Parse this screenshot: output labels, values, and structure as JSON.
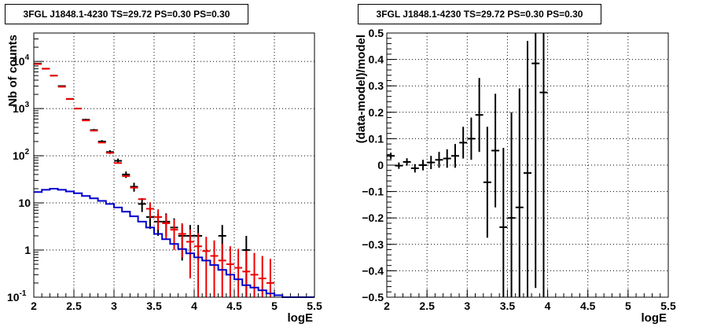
{
  "panels": [
    {
      "title": "3FGL J1848.1-4230 TS=29.72 PS=0.30 PS=0.30"
    },
    {
      "title": "3FGL J1848.1-4230 TS=29.72 PS=0.30 PS=0.30"
    }
  ],
  "colors": {
    "data": "#000000",
    "model": "#ee0000",
    "background": "#0000cc"
  },
  "chart_data": [
    {
      "type": "line",
      "title": "3FGL J1848.1-4230 TS=29.72 PS=0.30 PS=0.30",
      "xlabel": "logE",
      "ylabel": "Nb of counts",
      "xlim": [
        2,
        5.5
      ],
      "ylim": [
        0.1,
        40000
      ],
      "yscale": "log",
      "grid": true,
      "x_ticks": [
        "2",
        "2.5",
        "3",
        "3.5",
        "4",
        "4.5",
        "5",
        "5.5"
      ],
      "y_ticks": [
        "10^-1",
        "1",
        "10",
        "10^2",
        "10^3",
        "10^4"
      ],
      "series": [
        {
          "type": "errorbar",
          "color": "#000000",
          "x": [
            2.05,
            2.15,
            2.25,
            2.35,
            2.45,
            2.55,
            2.65,
            2.75,
            2.85,
            2.95,
            3.05,
            3.15,
            3.25,
            3.35,
            3.45,
            3.55,
            3.65,
            3.75,
            3.85,
            3.95,
            4.05,
            4.35,
            4.65
          ],
          "y": [
            9000,
            7000,
            5000,
            3000,
            1600,
            1000,
            580,
            350,
            200,
            120,
            78,
            40,
            22,
            9.5,
            5,
            4,
            4,
            3,
            2,
            2,
            2,
            2,
            1
          ],
          "yerr_lo": [
            95,
            84,
            71,
            55,
            40,
            32,
            24,
            19,
            14,
            11,
            9,
            6.3,
            4.7,
            3.1,
            2.2,
            2,
            2,
            1.7,
            1.4,
            1.4,
            1.4,
            1.4,
            1
          ],
          "yerr_hi": [
            95,
            84,
            71,
            55,
            40,
            32,
            24,
            19,
            14,
            11,
            9,
            6.3,
            4.7,
            3.1,
            2.2,
            2,
            2,
            1.7,
            1.4,
            1.4,
            1.4,
            1.4,
            1
          ]
        },
        {
          "type": "errorbar",
          "color": "#ee0000",
          "x": [
            2.05,
            2.15,
            2.25,
            2.35,
            2.45,
            2.55,
            2.65,
            2.75,
            2.85,
            2.95,
            3.05,
            3.15,
            3.25,
            3.35,
            3.45,
            3.55,
            3.65,
            3.75,
            3.85,
            3.95,
            4.05,
            4.15,
            4.25,
            4.35,
            4.45,
            4.55,
            4.65,
            4.75,
            4.85,
            4.95
          ],
          "y": [
            8800,
            7000,
            5000,
            2900,
            1600,
            1000,
            560,
            340,
            190,
            115,
            70,
            37,
            21,
            12,
            7.5,
            5,
            3.7,
            2.7,
            2.2,
            1.5,
            1.2,
            0.95,
            0.75,
            0.6,
            0.5,
            0.42,
            0.35,
            0.3,
            0.25,
            0.2
          ],
          "yerr_lo": [
            0,
            0,
            0,
            0,
            0,
            0,
            0,
            0,
            0,
            0,
            0,
            0,
            0,
            0,
            2.8,
            2.3,
            2,
            1.7,
            1.5,
            1.25,
            1.1,
            0.85,
            0.7,
            0.55,
            0.48,
            0.41,
            0.34,
            0.29,
            0.24,
            0.19
          ],
          "yerr_hi": [
            0,
            0,
            0,
            0,
            0,
            0,
            0,
            0,
            0,
            0,
            0,
            0,
            0,
            0,
            2.8,
            2.3,
            2,
            1.7,
            1.5,
            1.25,
            1.1,
            0.95,
            0.85,
            0.75,
            0.7,
            0.64,
            0.6,
            0.57,
            0.5,
            0.45
          ]
        },
        {
          "type": "step",
          "color": "#0000cc",
          "edges": [
            2.0,
            2.1,
            2.2,
            2.3,
            2.4,
            2.5,
            2.6,
            2.7,
            2.8,
            2.9,
            3.0,
            3.1,
            3.2,
            3.3,
            3.4,
            3.5,
            3.6,
            3.7,
            3.8,
            3.9,
            4.0,
            4.1,
            4.2,
            4.3,
            4.4,
            4.5,
            4.6,
            4.7,
            4.8,
            4.9,
            5.0,
            5.1,
            5.2,
            5.3,
            5.4,
            5.5
          ],
          "values": [
            17,
            19,
            20,
            19,
            17.5,
            16,
            14,
            12.5,
            11,
            9.5,
            8,
            6.5,
            5.2,
            4,
            3,
            2.2,
            1.7,
            1.35,
            1.05,
            0.85,
            0.7,
            0.6,
            0.48,
            0.38,
            0.3,
            0.24,
            0.18,
            0.16,
            0.14,
            0.12,
            0.11,
            0.1,
            0.1,
            0.1,
            0.1
          ]
        }
      ]
    },
    {
      "type": "scatter",
      "title": "3FGL J1848.1-4230 TS=29.72 PS=0.30 PS=0.30",
      "xlabel": "logE",
      "ylabel": "(data-model)/model",
      "xlim": [
        2,
        5.5
      ],
      "ylim": [
        -0.5,
        0.5
      ],
      "grid": true,
      "x_ticks": [
        "2",
        "2.5",
        "3",
        "3.5",
        "4",
        "4.5",
        "5",
        "5.5"
      ],
      "y_ticks": [
        "-0.5",
        "-0.4",
        "-0.3",
        "-0.2",
        "-0.1",
        "0",
        "0.1",
        "0.2",
        "0.3",
        "0.4",
        "0.5"
      ],
      "series": [
        {
          "type": "errorbar",
          "color": "#000000",
          "x": [
            2.05,
            2.15,
            2.25,
            2.35,
            2.45,
            2.55,
            2.65,
            2.75,
            2.85,
            2.95,
            3.05,
            3.15,
            3.25,
            3.35,
            3.45,
            3.55,
            3.65,
            3.75,
            3.85,
            3.95
          ],
          "y": [
            0.035,
            -0.002,
            0.012,
            -0.012,
            0.0,
            0.01,
            0.02,
            0.025,
            0.035,
            0.085,
            0.1,
            0.19,
            -0.065,
            0.055,
            -0.235,
            -0.2,
            -0.16,
            -0.03,
            0.385,
            0.275
          ],
          "yerr": [
            0.012,
            0.012,
            0.014,
            0.016,
            0.02,
            0.025,
            0.03,
            0.035,
            0.045,
            0.06,
            0.08,
            0.14,
            0.21,
            0.215,
            0.3,
            0.4,
            0.45,
            0.5,
            0.85,
            0.9
          ]
        }
      ]
    }
  ]
}
